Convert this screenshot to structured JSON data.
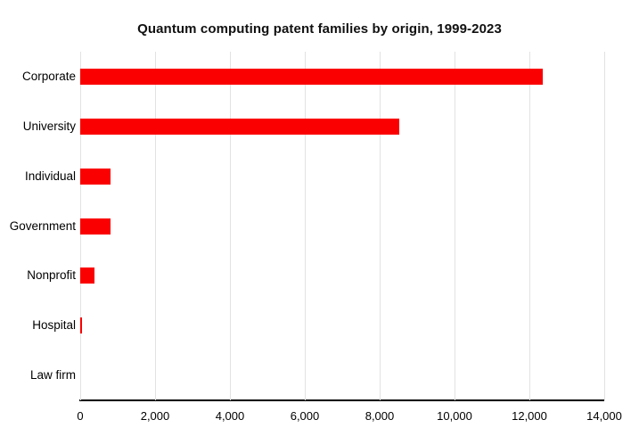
{
  "chart_data": {
    "type": "bar",
    "orientation": "horizontal",
    "title": "Quantum computing patent families by origin, 1999-2023",
    "categories": [
      "Corporate",
      "University",
      "Individual",
      "Government",
      "Nonprofit",
      "Hospital",
      "Law firm"
    ],
    "values": [
      12350,
      8530,
      820,
      800,
      370,
      55,
      0
    ],
    "xlabel": "",
    "ylabel": "",
    "xlim": [
      0,
      14000
    ],
    "x_ticks": [
      0,
      2000,
      4000,
      6000,
      8000,
      10000,
      12000,
      14000
    ],
    "x_tick_labels": [
      "0",
      "2,000",
      "4,000",
      "6,000",
      "8,000",
      "10,000",
      "12,000",
      "14,000"
    ],
    "grid": true,
    "legend": false,
    "colors": {
      "bar": "#fa0000",
      "gridline": "#e2e2e2",
      "axis_line": "#000000",
      "text": "#000000"
    }
  }
}
